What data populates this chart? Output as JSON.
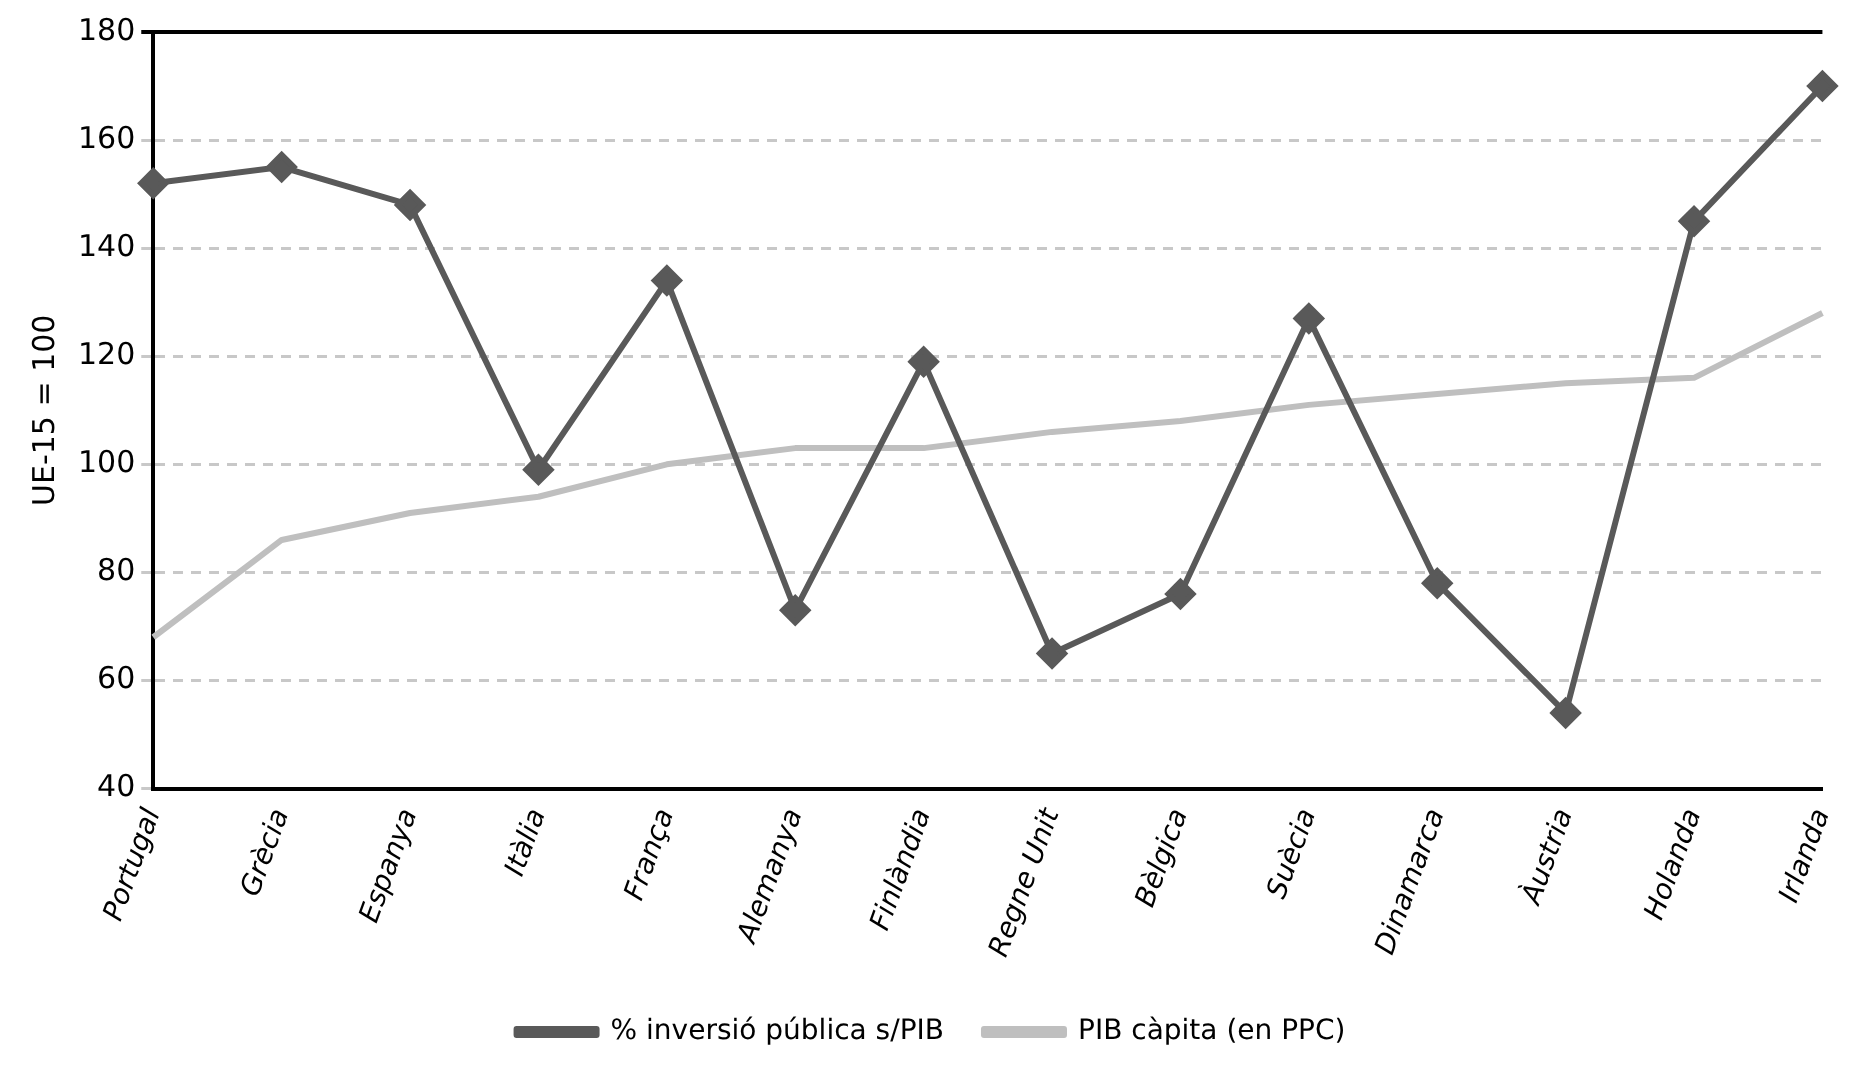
{
  "chart_data": {
    "type": "line",
    "ylabel": "UE-15 = 100",
    "categories": [
      "Portugal",
      "Grècia",
      "Espanya",
      "Itàlia",
      "França",
      "Alemanya",
      "Finlàndia",
      "Regne Unit",
      "Bèlgica",
      "Suècia",
      "Dinamarca",
      "Àustria",
      "Holanda",
      "Irlanda"
    ],
    "series": [
      {
        "name": "% inversió pública s/PIB",
        "color": "#595959",
        "marker": "diamond",
        "values": [
          152,
          155,
          148,
          99,
          134,
          73,
          119,
          65,
          76,
          127,
          78,
          54,
          145,
          170
        ]
      },
      {
        "name": "PIB càpita (en PPC)",
        "color": "#bfbfbf",
        "marker": "none",
        "values": [
          68,
          86,
          91,
          94,
          100,
          103,
          103,
          106,
          108,
          111,
          113,
          115,
          116,
          128
        ]
      }
    ],
    "ylim": [
      40,
      180
    ],
    "yticks": [
      40,
      60,
      80,
      100,
      120,
      140,
      160,
      180
    ],
    "grid": "y",
    "legend": "bottom",
    "line_style": "solid"
  }
}
